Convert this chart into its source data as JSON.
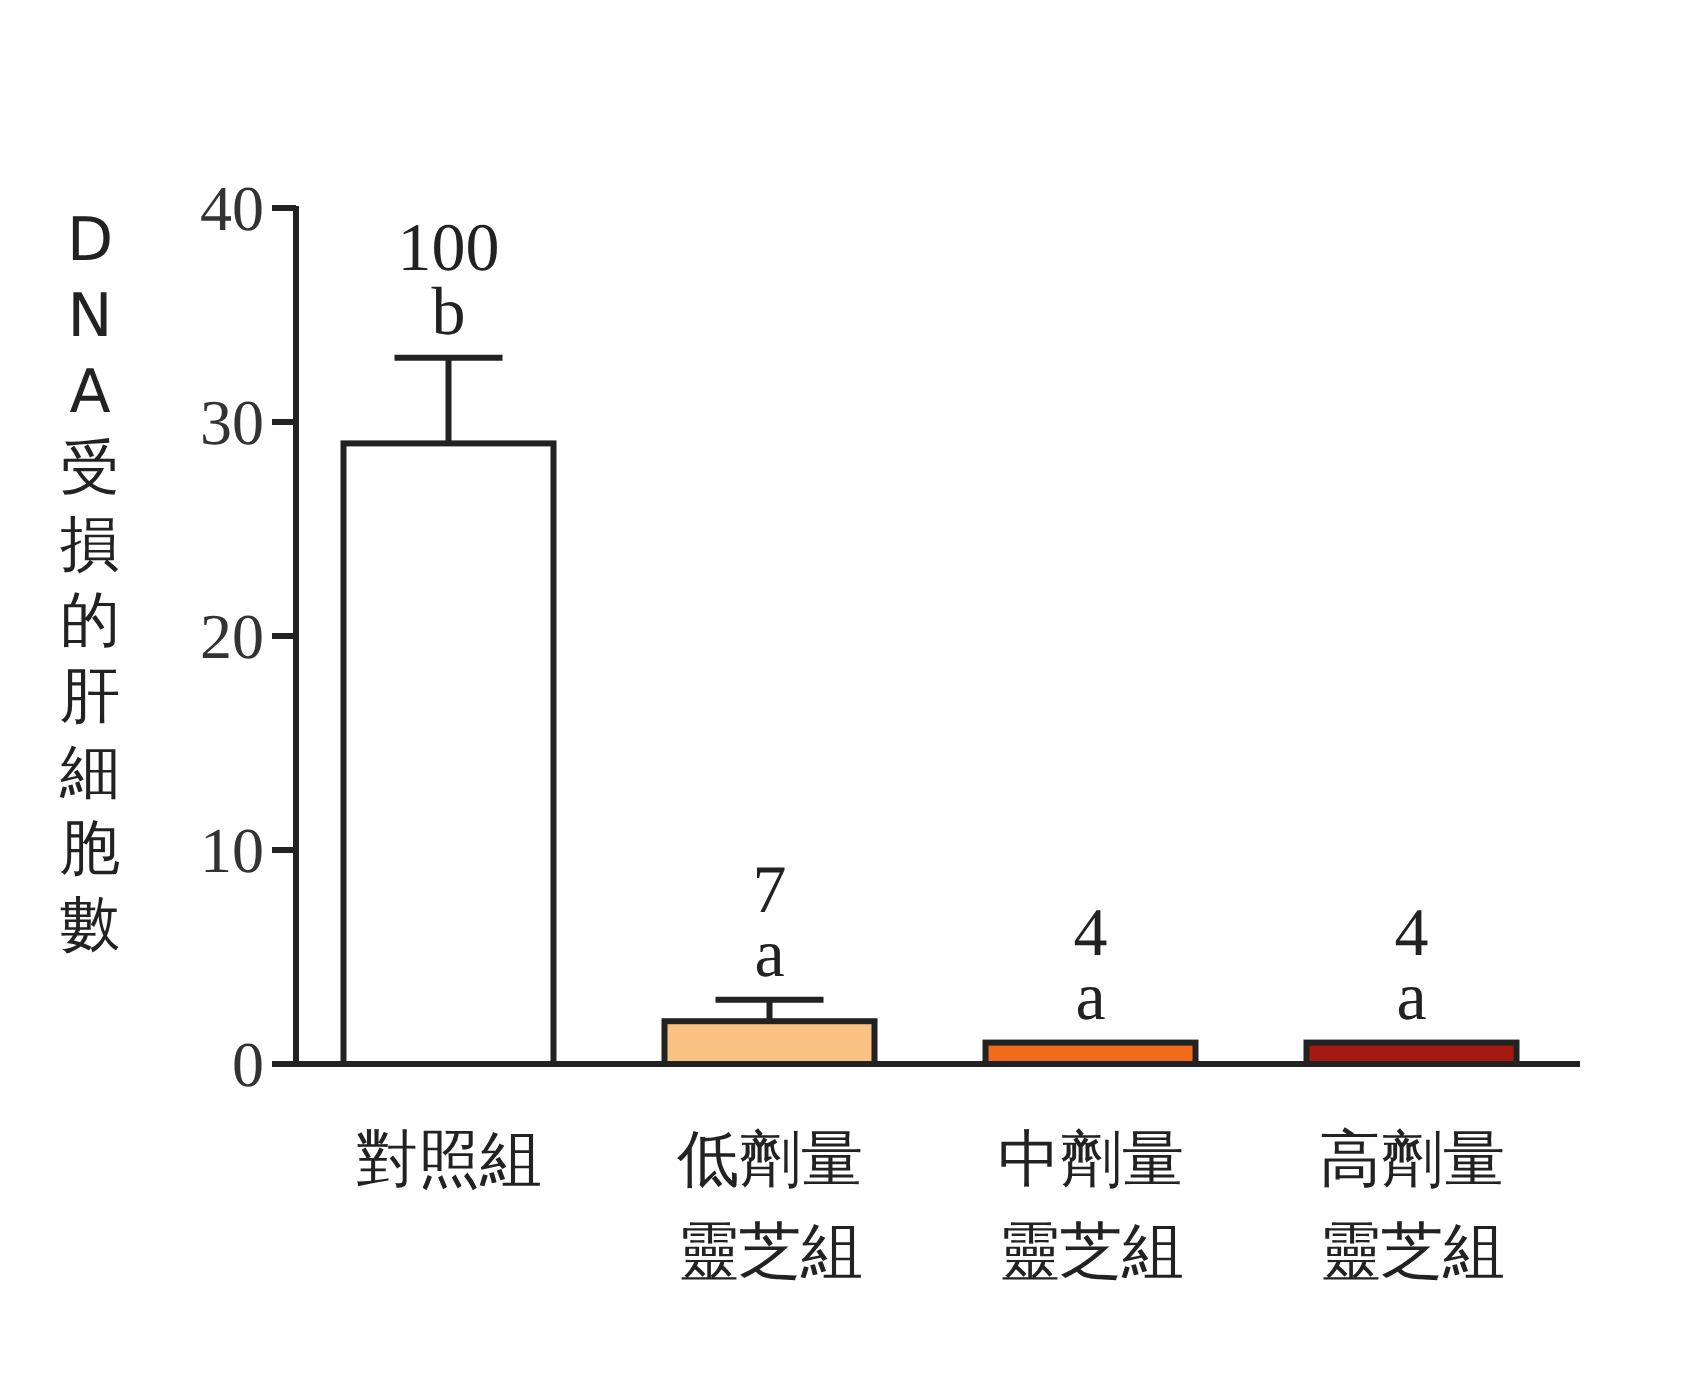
{
  "chart_data": {
    "type": "bar",
    "ylabel": "DNA受損的肝細胞數",
    "categories": [
      "對照組",
      "低劑量靈芝組",
      "中劑量靈芝組",
      "高劑量靈芝組"
    ],
    "values": [
      29,
      2,
      1,
      1
    ],
    "colors": [
      "#ffffff",
      "#f9c283",
      "#f26a1c",
      "#a51a10"
    ],
    "errors": [
      [
        29,
        33
      ],
      [
        2,
        3
      ],
      null,
      null
    ],
    "annotations": [
      {
        "text": "100\nb",
        "x": "對照組",
        "y": 33
      },
      {
        "text": "7\na",
        "x": "低劑量靈芝組",
        "y": 3
      },
      {
        "text": "4\na",
        "x": "中劑量靈芝組",
        "y": 1
      },
      {
        "text": "4\na",
        "x": "高劑量靈芝組",
        "y": 1
      }
    ],
    "ylim": [
      0,
      40
    ],
    "yticks": [
      0,
      10,
      20,
      30,
      40
    ],
    "grid": false
  }
}
